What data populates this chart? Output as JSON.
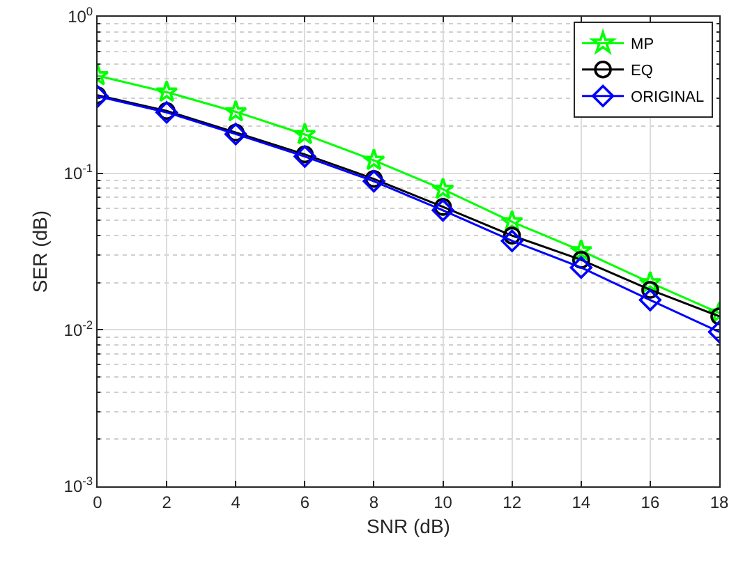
{
  "chart_data": {
    "type": "line",
    "xlabel": "SNR (dB)",
    "ylabel": "SER (dB)",
    "x": [
      0,
      2,
      4,
      6,
      8,
      10,
      12,
      14,
      16,
      18
    ],
    "series": [
      {
        "name": "MP",
        "color": "#00ff00",
        "marker": "star",
        "values": [
          0.42,
          0.33,
          0.247,
          0.177,
          0.121,
          0.079,
          0.049,
          0.032,
          0.02,
          0.0128
        ]
      },
      {
        "name": "EQ",
        "color": "#000000",
        "marker": "circle",
        "values": [
          0.315,
          0.25,
          0.182,
          0.132,
          0.092,
          0.061,
          0.04,
          0.028,
          0.018,
          0.0122
        ]
      },
      {
        "name": "ORIGINAL",
        "color": "#0000ff",
        "marker": "diamond",
        "values": [
          0.31,
          0.245,
          0.178,
          0.128,
          0.089,
          0.058,
          0.037,
          0.025,
          0.0155,
          0.0097
        ]
      }
    ],
    "log": "y",
    "xlim": [
      0,
      18
    ],
    "xticks": [
      0,
      2,
      4,
      6,
      8,
      10,
      12,
      14,
      16,
      18
    ],
    "ylim": [
      0.001,
      1
    ],
    "yticks": [
      {
        "value": 0.001,
        "label": "10$^{-3}$"
      },
      {
        "value": 0.01,
        "label": "10$^{-2}$"
      },
      {
        "value": 0.1,
        "label": "10$^{-1}$"
      },
      {
        "value": 1,
        "label": "10$^{0}$"
      }
    ],
    "grid": true,
    "legend": "top right",
    "line_style": "solid"
  }
}
